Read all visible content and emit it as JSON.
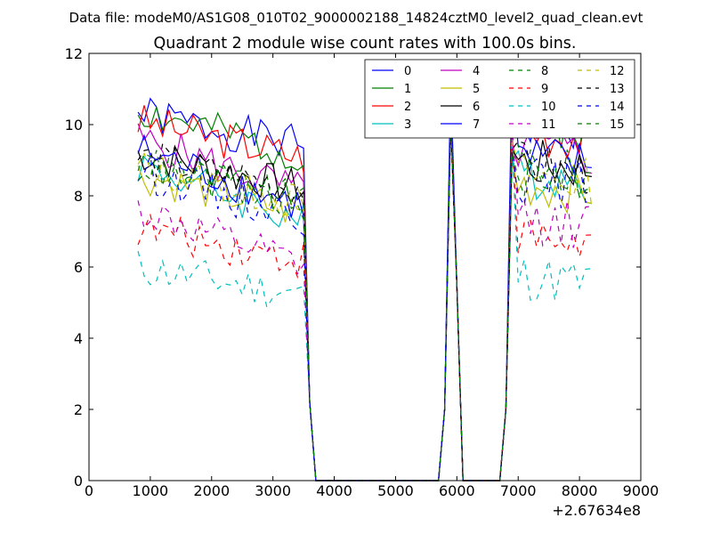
{
  "chart_data": {
    "type": "line",
    "suptitle": "Data file: modeM0/AS1G08_010T02_9000002188_14824cztM0_level2_quad_clean.evt",
    "title": "Quadrant 2 module wise count rates with 100.0s bins.",
    "xlabel": "",
    "ylabel": "",
    "x_offset_label": "+2.67634e8",
    "xlim": [
      0,
      9000
    ],
    "ylim": [
      0,
      12
    ],
    "x_ticks": [
      0,
      1000,
      2000,
      3000,
      4000,
      5000,
      6000,
      7000,
      8000,
      9000
    ],
    "y_ticks": [
      0,
      2,
      4,
      6,
      8,
      10,
      12
    ],
    "grid": false,
    "legend": {
      "placement": "top-right",
      "columns": 4
    },
    "series": [
      {
        "name": "0",
        "color": "#0000ff",
        "dash": "solid",
        "base": 10.3,
        "slope": -0.9,
        "seed": 1,
        "peak1": 10.8,
        "peak2": 9.6
      },
      {
        "name": "1",
        "color": "#008000",
        "dash": "solid",
        "base": 10.4,
        "slope": -1.3,
        "seed": 2,
        "peak1": 10.4,
        "peak2": 9.5
      },
      {
        "name": "2",
        "color": "#ff0000",
        "dash": "solid",
        "base": 10.1,
        "slope": -1.0,
        "seed": 3,
        "peak1": 10.2,
        "peak2": 9.7
      },
      {
        "name": "3",
        "color": "#00bfbf",
        "dash": "solid",
        "base": 8.9,
        "slope": -1.6,
        "seed": 4,
        "peak1": 10.5,
        "peak2": 9.0
      },
      {
        "name": "4",
        "color": "#bf00bf",
        "dash": "solid",
        "base": 9.6,
        "slope": -1.5,
        "seed": 5,
        "peak1": 10.6,
        "peak2": 9.4
      },
      {
        "name": "5",
        "color": "#bfbf00",
        "dash": "solid",
        "base": 8.6,
        "slope": -1.1,
        "seed": 6,
        "peak1": 10.1,
        "peak2": 9.0
      },
      {
        "name": "6",
        "color": "#000000",
        "dash": "solid",
        "base": 9.2,
        "slope": -1.0,
        "seed": 7,
        "peak1": 10.6,
        "peak2": 9.3
      },
      {
        "name": "7",
        "color": "#0000ff",
        "dash": "solid",
        "base": 9.3,
        "slope": -1.6,
        "seed": 8,
        "peak1": 11.3,
        "peak2": 11.5
      },
      {
        "name": "8",
        "color": "#008000",
        "dash": "dashed",
        "base": 9.0,
        "slope": -1.2,
        "seed": 9,
        "peak1": 10.3,
        "peak2": 10.2
      },
      {
        "name": "9",
        "color": "#ff0000",
        "dash": "dashed",
        "base": 7.1,
        "slope": -0.9,
        "seed": 10,
        "peak1": 10.0,
        "peak2": 9.8
      },
      {
        "name": "10",
        "color": "#00bfbf",
        "dash": "dashed",
        "base": 6.0,
        "slope": -0.8,
        "seed": 11,
        "peak1": 10.2,
        "peak2": 9.6
      },
      {
        "name": "11",
        "color": "#bf00bf",
        "dash": "dashed",
        "base": 7.6,
        "slope": -1.6,
        "seed": 12,
        "peak1": 10.2,
        "peak2": 10.0
      },
      {
        "name": "12",
        "color": "#bfbf00",
        "dash": "dashed",
        "base": 8.8,
        "slope": -1.0,
        "seed": 13,
        "peak1": 10.4,
        "peak2": 9.5
      },
      {
        "name": "13",
        "color": "#000000",
        "dash": "dashed",
        "base": 9.1,
        "slope": -0.9,
        "seed": 14,
        "peak1": 10.0,
        "peak2": 9.3
      },
      {
        "name": "14",
        "color": "#0000ff",
        "dash": "dashed",
        "base": 8.7,
        "slope": -1.3,
        "seed": 15,
        "peak1": 10.3,
        "peak2": 9.2
      },
      {
        "name": "15",
        "color": "#008000",
        "dash": "dashed",
        "base": 8.9,
        "slope": -1.1,
        "seed": 16,
        "peak1": 10.1,
        "peak2": 9.2
      }
    ]
  }
}
